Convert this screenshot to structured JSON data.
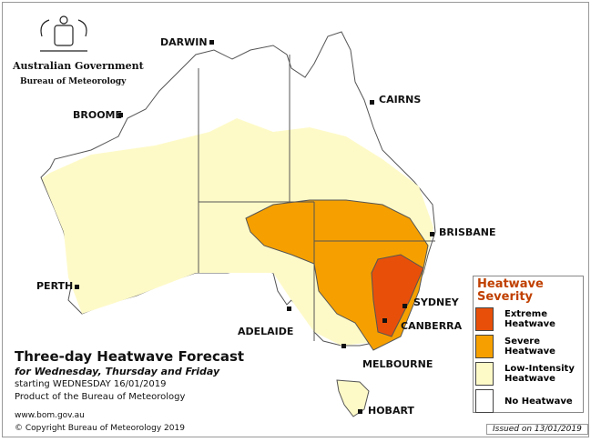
{
  "header": {
    "government": "Australian Government",
    "bureau": "Bureau of Meteorology"
  },
  "cities": [
    {
      "label": "DARWIN"
    },
    {
      "label": "CAIRNS"
    },
    {
      "label": "BROOME"
    },
    {
      "label": "BRISBANE"
    },
    {
      "label": "PERTH"
    },
    {
      "label": "SYDNEY"
    },
    {
      "label": "ADELAIDE"
    },
    {
      "label": "CANBERRA"
    },
    {
      "label": "MELBOURNE"
    },
    {
      "label": "HOBART"
    }
  ],
  "forecast": {
    "title": "Three-day Heatwave Forecast",
    "subtitle": "for Wednesday, Thursday and Friday",
    "starting": "starting WEDNESDAY 16/01/2019",
    "product": "Product of the Bureau of Meteorology"
  },
  "legend": {
    "title": "Heatwave Severity",
    "items": [
      {
        "label": "Extreme Heatwave",
        "color": "#e8500a"
      },
      {
        "label": "Severe Heatwave",
        "color": "#f5a000"
      },
      {
        "label": "Low-Intensity Heatwave",
        "color": "#fefac8"
      },
      {
        "label": "No Heatwave",
        "color": "#ffffff"
      }
    ]
  },
  "footer": {
    "url": "www.bom.gov.au",
    "copyright": "© Copyright Bureau of Meteorology 2019",
    "issued": "Issued on 13/01/2019"
  }
}
